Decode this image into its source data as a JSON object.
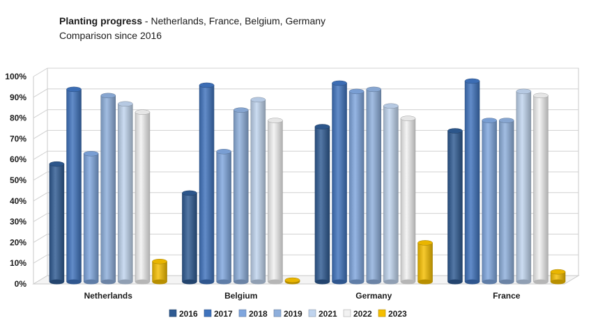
{
  "header": {
    "title": "Planting progress",
    "title_rest": " - Netherlands, France, Belgium, Germany",
    "subtitle": "Comparison since 2016"
  },
  "colors": {
    "2016": "#2e5a92",
    "2017": "#3f73bd",
    "2018": "#7fa6de",
    "2019": "#8eafdc",
    "2021": "#c0d4ee",
    "2022": "#f2f2f2",
    "2023": "#f5be00"
  },
  "chart_data": {
    "type": "bar",
    "title": "Planting progress - Netherlands, France, Belgium, Germany",
    "subtitle": "Comparison since 2016",
    "categories": [
      "Netherlands",
      "Belgium",
      "Germany",
      "France"
    ],
    "series": [
      {
        "name": "2016",
        "values": [
          59,
          45,
          77,
          75
        ]
      },
      {
        "name": "2017",
        "values": [
          95,
          97,
          98,
          99
        ]
      },
      {
        "name": "2018",
        "values": [
          64,
          65,
          94,
          80
        ]
      },
      {
        "name": "2019",
        "values": [
          92,
          85,
          95,
          80
        ]
      },
      {
        "name": "2021",
        "values": [
          88,
          90,
          87,
          94
        ]
      },
      {
        "name": "2022",
        "values": [
          84,
          80,
          81,
          92
        ]
      },
      {
        "name": "2023",
        "values": [
          12,
          3,
          21,
          7
        ]
      }
    ],
    "yticks": [
      "0%",
      "10%",
      "20%",
      "30%",
      "40%",
      "50%",
      "60%",
      "70%",
      "80%",
      "90%",
      "100%"
    ],
    "ylim": [
      0,
      100
    ],
    "grid": true,
    "legend": "bottom"
  }
}
